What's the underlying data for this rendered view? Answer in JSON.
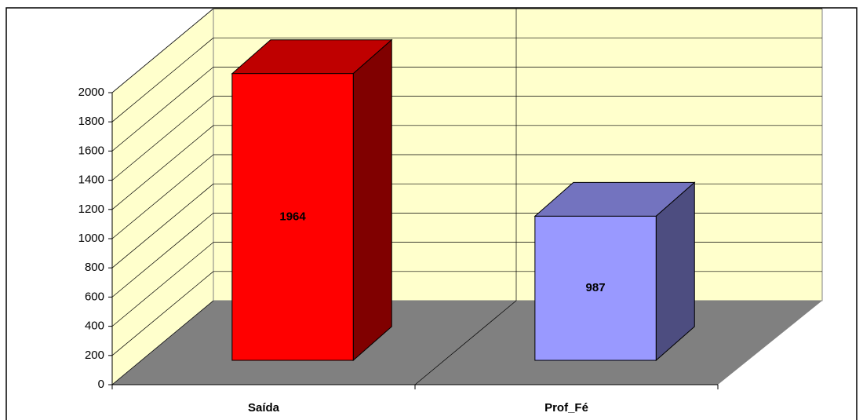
{
  "chart_data": {
    "type": "bar3d",
    "categories": [
      "Saída",
      "Prof_Fé"
    ],
    "series": [
      {
        "values": [
          1964,
          987
        ],
        "colors": [
          "#ff0000",
          "#9999ff"
        ]
      }
    ],
    "ylim": [
      0,
      2000
    ],
    "yticks": [
      0,
      200,
      400,
      600,
      800,
      1000,
      1200,
      1400,
      1600,
      1800,
      2000
    ],
    "grid": true
  }
}
